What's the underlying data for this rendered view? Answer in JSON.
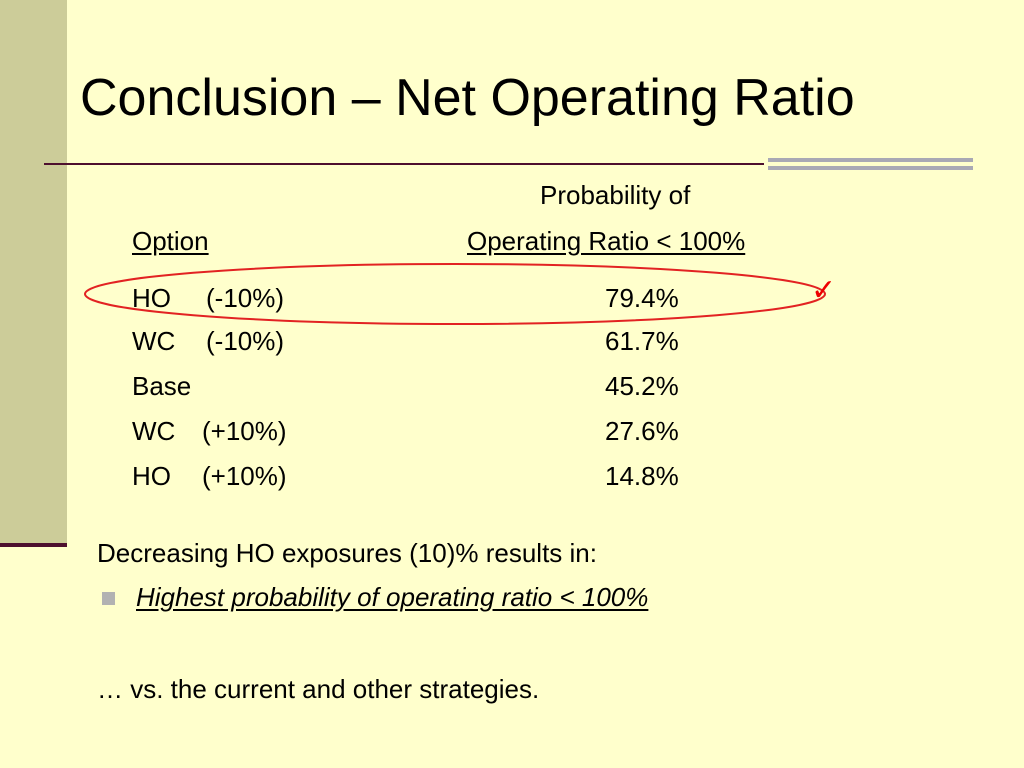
{
  "slide": {
    "title": "Conclusion – Net Operating Ratio"
  },
  "table": {
    "header_col1": "Option",
    "header_col2_line1": "Probability of",
    "header_col2_line2": "Operating Ratio < 100%",
    "rows": [
      {
        "option": "HO",
        "change": "(-10%)",
        "value": "79.4%"
      },
      {
        "option": "WC",
        "change": "(-10%)",
        "value": "61.7%"
      },
      {
        "option": "Base",
        "change": "",
        "value": "45.2%"
      },
      {
        "option": "WC",
        "change": "(+10%)",
        "value": "27.6%"
      },
      {
        "option": "HO",
        "change": "(+10%)",
        "value": "14.8%"
      }
    ],
    "check_mark": "✓",
    "highlight_color": "#EE0000"
  },
  "conclusion": {
    "intro": "Decreasing HO exposures (10)% results in:",
    "bullet": "Highest probability of operating ratio < 100%",
    "closing": "… vs. the current and other strategies."
  },
  "colors": {
    "background": "#FFFFCC",
    "left_bar": "#CCCC99",
    "rule": "#4D0F2E",
    "gray_bars": "#A9A9B4"
  }
}
